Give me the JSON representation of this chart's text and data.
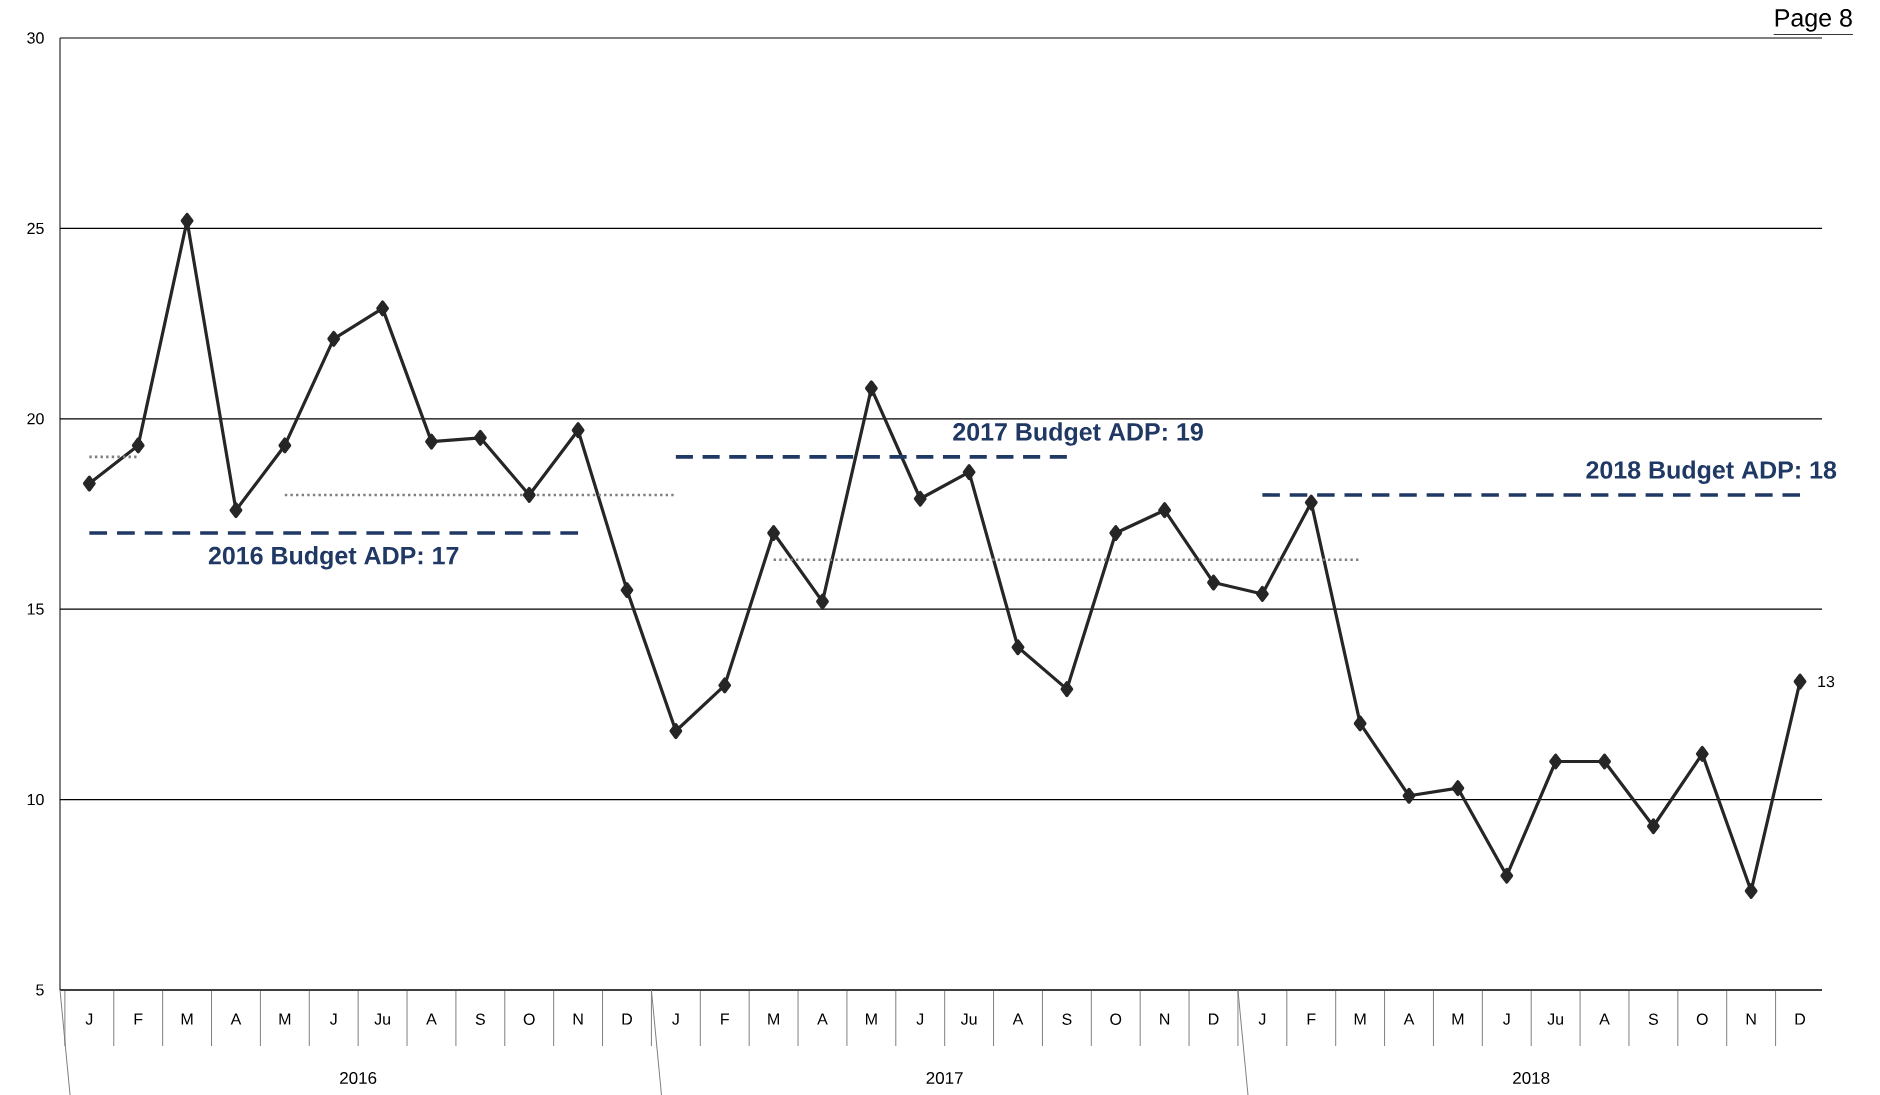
{
  "chart_data": {
    "type": "line",
    "categories": [
      "J",
      "F",
      "M",
      "A",
      "M",
      "J",
      "Ju",
      "A",
      "S",
      "O",
      "N",
      "D",
      "J",
      "F",
      "M",
      "A",
      "M",
      "J",
      "Ju",
      "A",
      "S",
      "O",
      "N",
      "D",
      "J",
      "F",
      "M",
      "A",
      "M",
      "J",
      "Ju",
      "A",
      "S",
      "O",
      "N",
      "D"
    ],
    "series": [
      {
        "color": "#262626",
        "marker": "diamond",
        "line_style": "solid",
        "values": [
          18.3,
          19.3,
          25.2,
          17.6,
          19.3,
          22.1,
          22.9,
          19.4,
          19.5,
          18.0,
          19.7,
          15.5,
          11.8,
          13.0,
          17.0,
          15.2,
          20.8,
          17.9,
          18.6,
          14.0,
          12.9,
          17.0,
          17.6,
          15.7,
          15.4,
          17.8,
          12.0,
          10.1,
          10.3,
          8.0,
          11.0,
          11.0,
          9.3,
          11.2,
          7.6,
          13.1
        ],
        "value_labels": [
          null,
          null,
          null,
          null,
          null,
          null,
          null,
          null,
          null,
          null,
          null,
          null,
          null,
          null,
          null,
          null,
          null,
          null,
          null,
          null,
          null,
          null,
          null,
          null,
          null,
          null,
          null,
          null,
          null,
          null,
          null,
          null,
          null,
          null,
          null,
          "13"
        ]
      },
      {
        "name": "2016 Budget ADP:  17",
        "color": "#1f3864",
        "marker": "none",
        "line_style": "dashed",
        "values": [
          17,
          17,
          17,
          17,
          17,
          17,
          17,
          17,
          17,
          17,
          17,
          null,
          null,
          null,
          null,
          null,
          null,
          null,
          null,
          null,
          null,
          null,
          null,
          null,
          null,
          null,
          null,
          null,
          null,
          null,
          null,
          null,
          null,
          null,
          null,
          null
        ]
      },
      {
        "name": "2017 Budget ADP:  19",
        "color": "#1f3864",
        "marker": "none",
        "line_style": "dashed",
        "values": [
          null,
          null,
          null,
          null,
          null,
          null,
          null,
          null,
          null,
          null,
          null,
          null,
          19,
          19,
          19,
          19,
          19,
          19,
          19,
          19,
          19,
          null,
          null,
          null,
          null,
          null,
          null,
          null,
          null,
          null,
          null,
          null,
          null,
          null,
          null,
          null
        ]
      },
      {
        "name": "2018 Budget ADP:  18",
        "color": "#1f3864",
        "marker": "none",
        "line_style": "dashed",
        "values": [
          null,
          null,
          null,
          null,
          null,
          null,
          null,
          null,
          null,
          null,
          null,
          null,
          null,
          null,
          null,
          null,
          null,
          null,
          null,
          null,
          null,
          null,
          null,
          null,
          18,
          18,
          18,
          18,
          18,
          18,
          18,
          18,
          18,
          18,
          18,
          18
        ]
      },
      {
        "color": "#7f7f7f",
        "marker": "none",
        "line_style": "dotted",
        "values": [
          19,
          19,
          null,
          null,
          null,
          null,
          null,
          null,
          null,
          null,
          null,
          null,
          null,
          null,
          null,
          null,
          null,
          null,
          null,
          null,
          null,
          null,
          null,
          null,
          null,
          null,
          null,
          null,
          null,
          null,
          null,
          null,
          null,
          null,
          null,
          null
        ]
      },
      {
        "color": "#7f7f7f",
        "marker": "none",
        "line_style": "dotted",
        "values": [
          null,
          null,
          null,
          null,
          18,
          18,
          18,
          18,
          18,
          18,
          18,
          18,
          18,
          null,
          null,
          null,
          null,
          null,
          null,
          null,
          null,
          null,
          null,
          null,
          null,
          null,
          null,
          null,
          null,
          null,
          null,
          null,
          null,
          null,
          null,
          null
        ]
      },
      {
        "color": "#7f7f7f",
        "marker": "none",
        "line_style": "dotted",
        "values": [
          null,
          null,
          null,
          null,
          null,
          null,
          null,
          null,
          null,
          null,
          null,
          null,
          null,
          null,
          16.3,
          16.3,
          16.3,
          16.3,
          16.3,
          16.3,
          16.3,
          16.3,
          16.3,
          16.3,
          16.3,
          16.3,
          16.3,
          null,
          null,
          null,
          null,
          null,
          null,
          null,
          null,
          null
        ]
      }
    ],
    "ylim": [
      5,
      30
    ],
    "yticks": [
      5,
      10,
      15,
      20,
      25,
      30
    ],
    "grid": "y",
    "annotations": [
      "Page 8",
      "2016",
      "2017",
      "2018"
    ]
  }
}
